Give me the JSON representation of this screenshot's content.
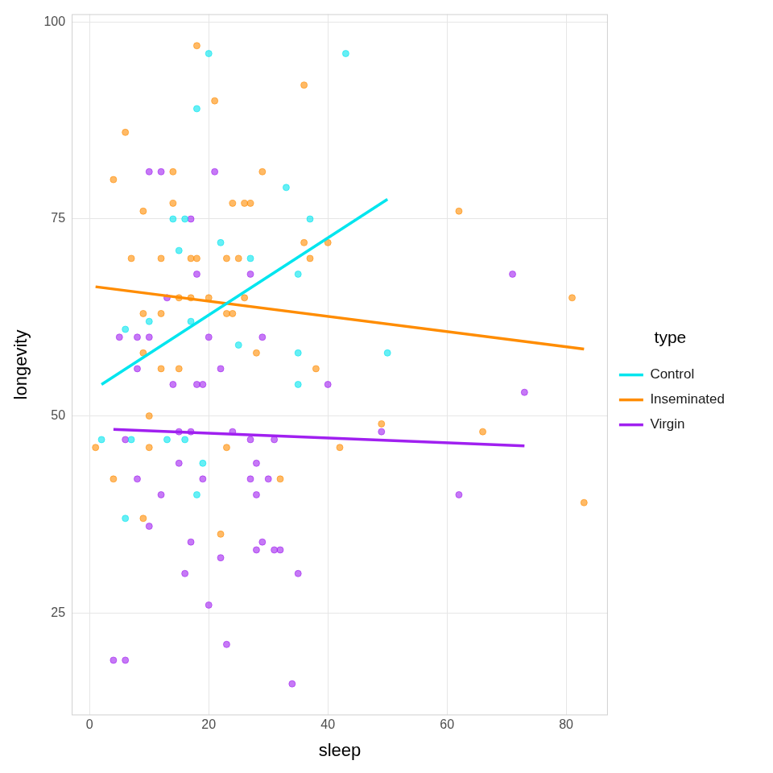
{
  "chart_data": {
    "type": "scatter",
    "x_label": "sleep",
    "y_label": "longevity",
    "legend_title": "type",
    "legend": "right",
    "grid": true,
    "marker": "circle",
    "xlim": [
      -3,
      87
    ],
    "xticks": [
      0,
      20,
      40,
      60,
      80
    ],
    "ylim": [
      12,
      101
    ],
    "yticks": [
      25,
      50,
      75,
      100
    ],
    "series": [
      {
        "name": "Control",
        "color": "#00E5EE",
        "line_style": "solid",
        "x": [
          2,
          6,
          6,
          7,
          10,
          13,
          14,
          15,
          16,
          16,
          17,
          18,
          18,
          19,
          20,
          22,
          25,
          27,
          33,
          35,
          35,
          35,
          37,
          43,
          50
        ],
        "values": [
          47,
          61,
          37,
          47,
          62,
          47,
          75,
          71,
          75,
          47,
          62,
          40,
          89,
          44,
          96,
          72,
          59,
          70,
          79,
          68,
          58,
          54,
          75,
          96,
          58
        ],
        "trend_x": [
          2,
          50
        ],
        "trend_y": [
          54,
          77.5
        ]
      },
      {
        "name": "Inseminated",
        "color": "#FF8C00",
        "line_style": "solid",
        "x": [
          1,
          4,
          4,
          6,
          7,
          9,
          9,
          9,
          9,
          10,
          10,
          12,
          12,
          12,
          14,
          14,
          15,
          15,
          17,
          17,
          18,
          18,
          20,
          21,
          22,
          23,
          23,
          23,
          24,
          24,
          25,
          26,
          26,
          27,
          28,
          29,
          32,
          36,
          36,
          37,
          38,
          40,
          42,
          49,
          62,
          66,
          81,
          83
        ],
        "values": [
          46,
          80,
          42,
          86,
          70,
          76,
          63,
          58,
          37,
          50,
          46,
          70,
          63,
          56,
          81,
          77,
          65,
          56,
          70,
          65,
          97,
          70,
          65,
          90,
          35,
          70,
          63,
          46,
          63,
          77,
          70,
          65,
          77,
          77,
          58,
          81,
          42,
          92,
          72,
          70,
          56,
          72,
          46,
          49,
          76,
          48,
          65,
          39
        ],
        "trend_x": [
          1,
          83
        ],
        "trend_y": [
          66.4,
          58.5
        ]
      },
      {
        "name": "Virgin",
        "color": "#A020F0",
        "line_style": "solid",
        "x": [
          4,
          5,
          6,
          6,
          8,
          8,
          8,
          10,
          10,
          10,
          12,
          12,
          13,
          14,
          15,
          15,
          16,
          17,
          17,
          17,
          18,
          18,
          19,
          19,
          20,
          20,
          21,
          22,
          22,
          23,
          24,
          27,
          27,
          27,
          28,
          28,
          28,
          29,
          29,
          30,
          31,
          31,
          32,
          34,
          35,
          40,
          49,
          62,
          71,
          73
        ],
        "values": [
          19,
          60,
          19,
          47,
          60,
          56,
          42,
          81,
          60,
          36,
          81,
          40,
          65,
          54,
          48,
          44,
          30,
          48,
          34,
          75,
          68,
          54,
          54,
          42,
          60,
          26,
          81,
          56,
          32,
          21,
          48,
          47,
          42,
          68,
          44,
          40,
          33,
          60,
          34,
          42,
          33,
          47,
          33,
          16,
          30,
          54,
          48,
          40,
          68,
          53
        ],
        "trend_x": [
          4,
          73
        ],
        "trend_y": [
          48.3,
          46.2
        ]
      }
    ]
  }
}
